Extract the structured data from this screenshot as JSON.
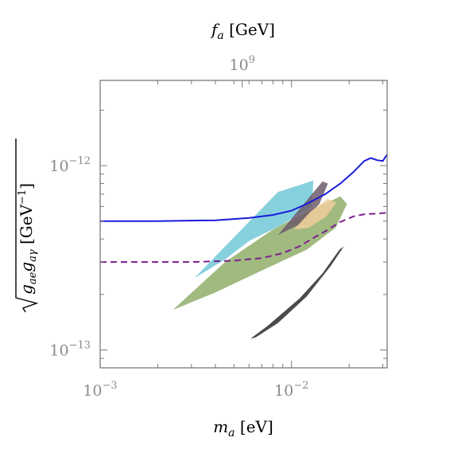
{
  "chart_data": {
    "type": "area",
    "title": "",
    "xlabel": "m_a [eV]",
    "ylabel": "√(g_ae g_aγ) [GeV⁻¹]",
    "top_xlabel": "f_a [GeV]",
    "x_scale": "log",
    "y_scale": "log",
    "xlim": [
      0.001,
      0.0316
    ],
    "ylim": [
      8e-14,
      2.9e-12
    ],
    "x_ticks": [
      {
        "value": 0.001,
        "base": "10",
        "exp": "−3"
      },
      {
        "value": 0.01,
        "base": "10",
        "exp": "−2"
      }
    ],
    "y_ticks": [
      {
        "value": 1e-13,
        "base": "10",
        "exp": "−13"
      },
      {
        "value": 1e-12,
        "base": "10",
        "exp": "−12"
      }
    ],
    "top_ticks": [
      {
        "ma_value": 0.00553,
        "base": "10",
        "exp": "9"
      }
    ],
    "series": [
      {
        "style": "line",
        "color": "#1a1adb",
        "dash": "solid",
        "points": [
          [
            0.001,
            5e-13
          ],
          [
            0.002,
            5e-13
          ],
          [
            0.004,
            5.05e-13
          ],
          [
            0.006,
            5.2e-13
          ],
          [
            0.008,
            5.4e-13
          ],
          [
            0.01,
            5.7e-13
          ],
          [
            0.012,
            6.2e-13
          ],
          [
            0.015,
            7e-13
          ],
          [
            0.018,
            8e-13
          ],
          [
            0.021,
            9.2e-13
          ],
          [
            0.024,
            1.06e-12
          ],
          [
            0.026,
            1.1e-12
          ],
          [
            0.028,
            1.07e-12
          ],
          [
            0.03,
            1.06e-12
          ],
          [
            0.0316,
            1.15e-12
          ]
        ]
      },
      {
        "style": "line",
        "color": "#7b1f8c",
        "dash": "dashed",
        "points": [
          [
            0.001,
            3e-13
          ],
          [
            0.003,
            3e-13
          ],
          [
            0.005,
            3.05e-13
          ],
          [
            0.007,
            3.15e-13
          ],
          [
            0.009,
            3.35e-13
          ],
          [
            0.011,
            3.65e-13
          ],
          [
            0.013,
            4.05e-13
          ],
          [
            0.015,
            4.4e-13
          ],
          [
            0.018,
            4.95e-13
          ],
          [
            0.021,
            5.3e-13
          ],
          [
            0.024,
            5.45e-13
          ],
          [
            0.028,
            5.5e-13
          ],
          [
            0.0316,
            5.55e-13
          ]
        ]
      },
      {
        "style": "region",
        "color": "#72c9d8",
        "points": [
          [
            0.0031,
            2.45e-13
          ],
          [
            0.0085,
            7.2e-13
          ],
          [
            0.013,
            8.3e-13
          ],
          [
            0.0128,
            6e-13
          ],
          [
            0.009,
            4.8e-13
          ],
          [
            0.006,
            3.9e-13
          ],
          [
            0.0045,
            3.1e-13
          ]
        ]
      },
      {
        "style": "region",
        "color": "#8fae6a",
        "points": [
          [
            0.0024,
            1.65e-13
          ],
          [
            0.0045,
            3e-13
          ],
          [
            0.008,
            4.5e-13
          ],
          [
            0.012,
            5.6e-13
          ],
          [
            0.018,
            6.8e-13
          ],
          [
            0.0195,
            6.2e-13
          ],
          [
            0.017,
            4.6e-13
          ],
          [
            0.012,
            3.5e-13
          ],
          [
            0.007,
            2.7e-13
          ],
          [
            0.004,
            2.05e-13
          ]
        ]
      },
      {
        "style": "region",
        "color": "#6d5b6a",
        "points": [
          [
            0.0085,
            4.2e-13
          ],
          [
            0.0145,
            8.2e-13
          ],
          [
            0.0155,
            8e-13
          ],
          [
            0.014,
            6.2e-13
          ],
          [
            0.011,
            4.8e-13
          ]
        ]
      },
      {
        "style": "region",
        "color": "#f0cc9a",
        "points": [
          [
            0.0103,
            4.5e-13
          ],
          [
            0.0125,
            5.6e-13
          ],
          [
            0.0155,
            6.6e-13
          ],
          [
            0.0172,
            6.3e-13
          ],
          [
            0.0152,
            5.3e-13
          ],
          [
            0.0123,
            4.6e-13
          ]
        ]
      },
      {
        "style": "region",
        "color": "#2b2b2b",
        "points": [
          [
            0.0061,
            1.15e-13
          ],
          [
            0.0075,
            1.35e-13
          ],
          [
            0.011,
            1.9e-13
          ],
          [
            0.0145,
            2.6e-13
          ],
          [
            0.0178,
            3.5e-13
          ],
          [
            0.0188,
            3.65e-13
          ],
          [
            0.016,
            2.85e-13
          ],
          [
            0.012,
            1.95e-13
          ],
          [
            0.0085,
            1.4e-13
          ],
          [
            0.0065,
            1.17e-13
          ]
        ]
      }
    ],
    "grid": false,
    "legend": "none"
  }
}
